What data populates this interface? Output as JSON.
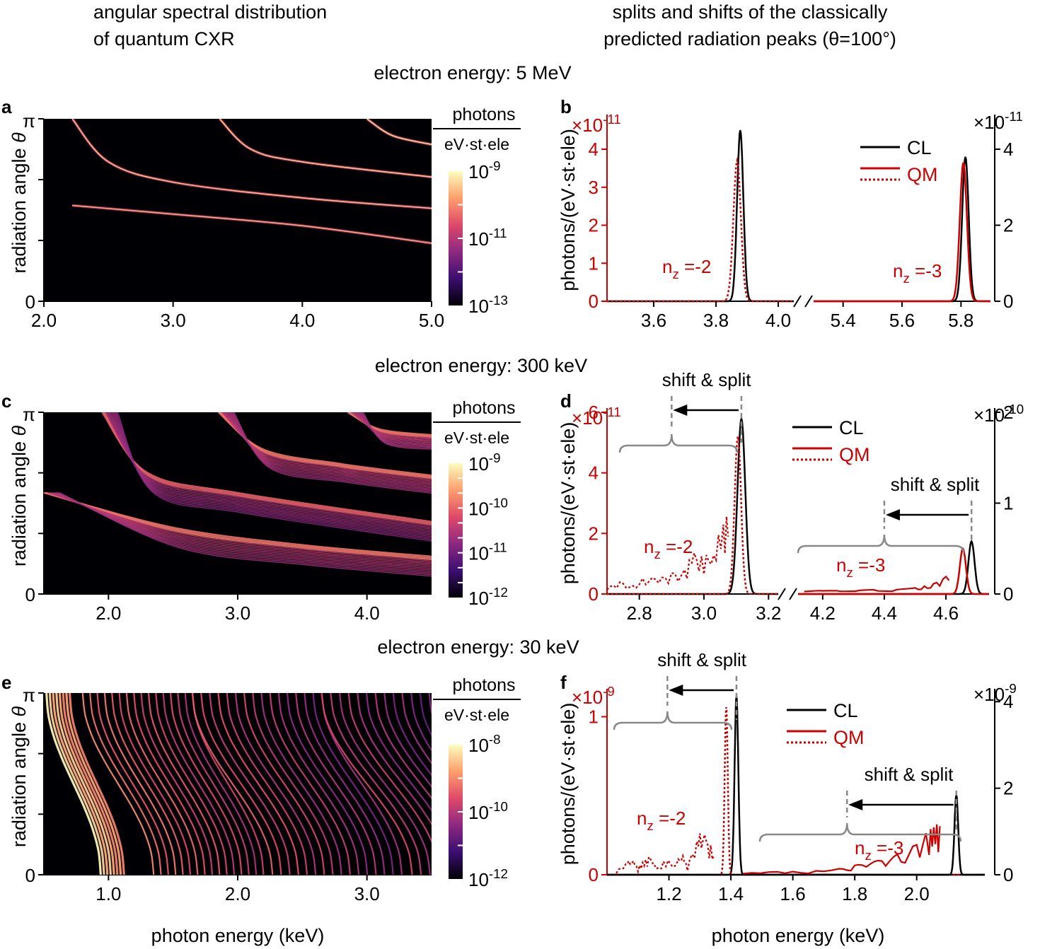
{
  "headers": {
    "left": [
      "angular spectral distribution",
      "of quantum CXR"
    ],
    "right": [
      "splits and shifts of the classically",
      "predicted radiation peaks (θ=100°)"
    ]
  },
  "section_titles": {
    "row1": "electron energy: 5 MeV",
    "row2": "electron energy: 300 keV",
    "row3": "electron energy: 30 keV"
  },
  "panel_letters": {
    "a": "a",
    "b": "b",
    "c": "c",
    "d": "d",
    "e": "e",
    "f": "f"
  },
  "bottom_xlabels": {
    "left": "photon energy (keV)",
    "right": "photon energy (keV)"
  },
  "colors": {
    "classical": "#000000",
    "quantum": "#cc0000",
    "annotation": "#888888",
    "heatmap_background": "#000004",
    "colormap": [
      "#000004",
      "#3b0f70",
      "#8c2981",
      "#de4968",
      "#fe9f6d",
      "#fcfdbf"
    ]
  },
  "chart_data": [
    {
      "panel": "a",
      "type": "heatmap",
      "ylabel": "radiation angle θ",
      "xticks": [
        "2.0",
        "3.0",
        "4.0",
        "5.0"
      ],
      "xlim": [
        2.0,
        5.0
      ],
      "yticks": [
        "0",
        "π"
      ],
      "ylim": [
        0,
        3.1416
      ],
      "colorbar": {
        "title": "photons",
        "unit": "eV·st·ele",
        "ticks": [
          "10-9",
          "10-11",
          "10-13"
        ],
        "scale": "log",
        "range": [
          1e-13,
          1e-09
        ]
      },
      "curves": [
        {
          "x": [
            2.22,
            3.0,
            4.0,
            5.0
          ],
          "y": [
            1.65,
            1.5,
            1.3,
            1.0
          ],
          "intensity": 0.62
        },
        {
          "x": [
            2.22,
            2.5,
            3.0,
            4.0,
            5.0
          ],
          "y": [
            3.14,
            2.4,
            2.05,
            1.78,
            1.6
          ],
          "intensity": 0.66
        },
        {
          "x": [
            3.36,
            3.6,
            4.0,
            5.0
          ],
          "y": [
            3.14,
            2.62,
            2.4,
            2.14
          ],
          "intensity": 0.68
        },
        {
          "x": [
            4.5,
            4.7,
            5.0
          ],
          "y": [
            3.14,
            2.85,
            2.7
          ],
          "intensity": 0.72
        }
      ]
    },
    {
      "panel": "b",
      "type": "line",
      "ylabel": "photons/(eV·st·ele)",
      "left_axis": {
        "multiplier": "×10-11",
        "ticks": [
          0,
          1,
          2,
          3,
          4
        ],
        "ylim": [
          0,
          4.8
        ]
      },
      "right_axis": {
        "multiplier": "×10-11",
        "ticks": [
          0,
          2,
          4
        ],
        "ylim": [
          0,
          4.8
        ]
      },
      "segments": [
        {
          "xlim": [
            3.45,
            4.05
          ],
          "xticks": [
            "3.6",
            "3.8",
            "4.0"
          ]
        },
        {
          "xlim": [
            5.3,
            5.9
          ],
          "xticks": [
            "5.4",
            "5.6",
            "5.8"
          ]
        }
      ],
      "legend": [
        "CL",
        "QM"
      ],
      "annotations": [
        {
          "text": "nz =-2"
        },
        {
          "text": "nz =-3"
        }
      ],
      "peaks": [
        {
          "series": "CL",
          "segment": 0,
          "center": 3.878,
          "width": 0.01,
          "height": 4.5
        },
        {
          "series": "QM-dotted",
          "segment": 0,
          "center": 3.868,
          "width": 0.012,
          "height": 3.7
        },
        {
          "series": "CL",
          "segment": 1,
          "center": 5.815,
          "width": 0.011,
          "height": 3.8
        },
        {
          "series": "QM-solid",
          "segment": 1,
          "center": 5.808,
          "width": 0.012,
          "height": 3.65
        }
      ]
    },
    {
      "panel": "c",
      "type": "heatmap",
      "ylabel": "radiation angle θ",
      "xticks": [
        "2.0",
        "3.0",
        "4.0"
      ],
      "xlim": [
        1.5,
        4.5
      ],
      "yticks": [
        "0",
        "π"
      ],
      "ylim": [
        0,
        3.1416
      ],
      "colorbar": {
        "title": "photons",
        "unit": "eV·st·ele",
        "ticks": [
          "10-9",
          "10-10",
          "10-11",
          "10-12"
        ],
        "scale": "log",
        "range": [
          1e-12,
          1e-09
        ]
      },
      "bands": [
        {
          "x": [
            1.5,
            2.5,
            3.5,
            4.5
          ],
          "y": [
            1.75,
            1.15,
            0.85,
            0.65
          ],
          "spread": 0.35,
          "intensity": 0.55
        },
        {
          "x": [
            1.95,
            2.3,
            3.0,
            4.5
          ],
          "y": [
            3.14,
            2.1,
            1.75,
            1.25
          ],
          "spread": 0.35,
          "intensity": 0.5
        },
        {
          "x": [
            2.85,
            3.2,
            3.8,
            4.5
          ],
          "y": [
            3.14,
            2.5,
            2.25,
            2.05
          ],
          "spread": 0.32,
          "intensity": 0.55
        },
        {
          "x": [
            3.85,
            4.1,
            4.5
          ],
          "y": [
            3.14,
            2.85,
            2.75
          ],
          "spread": 0.25,
          "intensity": 0.55
        }
      ]
    },
    {
      "panel": "d",
      "type": "line",
      "ylabel": "photons/(eV·st·ele)",
      "left_axis": {
        "multiplier": "×10-11",
        "ticks": [
          0,
          2,
          4,
          6
        ],
        "ylim": [
          0,
          6.0
        ]
      },
      "right_axis": {
        "multiplier": "×10-10",
        "ticks": [
          0,
          1,
          2
        ],
        "ylim": [
          0,
          2.0
        ]
      },
      "segments": [
        {
          "xlim": [
            2.7,
            3.23
          ],
          "xticks": [
            "2.8",
            "3.0",
            "3.2"
          ]
        },
        {
          "xlim": [
            4.12,
            4.74
          ],
          "xticks": [
            "4.2",
            "4.4",
            "4.6"
          ]
        }
      ],
      "legend": [
        "CL",
        "QM"
      ],
      "annotations": [
        {
          "text": "shift & split"
        },
        {
          "text": "shift & split"
        },
        {
          "text": "nz =-2"
        },
        {
          "text": "nz =-3"
        }
      ],
      "peaks": [
        {
          "series": "CL",
          "segment": 0,
          "center": 3.116,
          "width": 0.012,
          "height": 5.8
        },
        {
          "series": "QM-dotted",
          "segment": 0,
          "center": 3.105,
          "width": 0.01,
          "height": 5.2
        },
        {
          "series": "CL",
          "segment": 1,
          "center": 4.683,
          "width": 0.01,
          "height": 0.58
        },
        {
          "series": "QM-solid",
          "segment": 1,
          "center": 4.655,
          "width": 0.01,
          "height": 0.5
        }
      ],
      "qm_noise": [
        {
          "segment": 0,
          "x": [
            2.7,
            2.74,
            2.78,
            2.82,
            2.86,
            2.9,
            2.94,
            2.97,
            3.0,
            3.03,
            3.06,
            3.08
          ],
          "y": [
            0.2,
            0.4,
            0.3,
            0.6,
            0.5,
            0.7,
            0.9,
            1.4,
            1.2,
            1.6,
            2.3,
            3.0
          ]
        },
        {
          "segment": 1,
          "x": [
            4.14,
            4.2,
            4.26,
            4.32,
            4.38,
            4.44,
            4.5,
            4.54,
            4.58,
            4.62
          ],
          "y": [
            0.03,
            0.04,
            0.05,
            0.04,
            0.05,
            0.06,
            0.07,
            0.1,
            0.14,
            0.26
          ]
        }
      ],
      "shift_arrows": [
        {
          "segment": 0,
          "from": 3.116,
          "to": 2.9
        },
        {
          "segment": 1,
          "from": 4.683,
          "to": 4.4
        }
      ]
    },
    {
      "panel": "e",
      "type": "heatmap",
      "ylabel": "radiation angle θ",
      "xticks": [
        "1.0",
        "2.0",
        "3.0"
      ],
      "xlim": [
        0.5,
        3.5
      ],
      "yticks": [
        "0",
        "π"
      ],
      "ylim": [
        0,
        3.1416
      ],
      "colorbar": {
        "title": "photons",
        "unit": "eV·st·ele",
        "ticks": [
          "10-8",
          "10-10",
          "10-12"
        ],
        "scale": "log",
        "range": [
          1e-12,
          1e-08
        ]
      },
      "families": [
        {
          "x_top_start": 0.52,
          "x_top_end": 0.7,
          "count": 8,
          "drift": 0.42,
          "intensity": 0.78
        },
        {
          "x_top_start": 0.8,
          "x_top_end": 1.65,
          "count": 16,
          "drift": 0.55,
          "intensity": 0.55
        },
        {
          "x_top_start": 1.65,
          "x_top_end": 2.65,
          "count": 16,
          "drift": 0.62,
          "intensity": 0.45
        },
        {
          "x_top_start": 2.65,
          "x_top_end": 3.55,
          "count": 14,
          "drift": 0.7,
          "intensity": 0.38
        }
      ]
    },
    {
      "panel": "f",
      "type": "line",
      "ylabel": "photons/(eV·st·ele)",
      "xlim": [
        1.0,
        2.22
      ],
      "xticks": [
        "1.2",
        "1.4",
        "1.6",
        "1.8",
        "2.0"
      ],
      "left_axis": {
        "multiplier": "×10-9",
        "ticks": [
          0,
          1
        ],
        "ylim": [
          0,
          1.15
        ]
      },
      "right_axis": {
        "multiplier": "×10-9",
        "ticks": [
          0,
          2,
          4
        ],
        "ylim": [
          0,
          4.2
        ]
      },
      "legend": [
        "CL",
        "QM"
      ],
      "annotations": [
        {
          "text": "shift & split"
        },
        {
          "text": "shift & split"
        },
        {
          "text": "nz =-2"
        },
        {
          "text": "nz =-3"
        }
      ],
      "peaks": [
        {
          "series": "CL",
          "center": 1.418,
          "width": 0.006,
          "height": 1.13
        },
        {
          "series": "QM-dotted",
          "center": 1.385,
          "width": 0.005,
          "height": 1.06
        },
        {
          "series": "CL-right",
          "center": 2.128,
          "width": 0.006,
          "height": 1.2
        }
      ],
      "qm_noise": [
        {
          "style": "dotted",
          "x": [
            1.03,
            1.06,
            1.08,
            1.1,
            1.12,
            1.14,
            1.16,
            1.19,
            1.22,
            1.24,
            1.26,
            1.29,
            1.31,
            1.33,
            1.35
          ],
          "y": [
            0.02,
            0.08,
            0.11,
            0.05,
            0.09,
            0.12,
            0.04,
            0.1,
            0.07,
            0.15,
            0.06,
            0.24,
            0.31,
            0.22,
            0.1
          ]
        },
        {
          "style": "solid",
          "x": [
            1.44,
            1.55,
            1.65,
            1.75,
            1.8,
            1.85,
            1.9,
            1.95,
            2.0,
            2.04,
            2.06,
            2.08
          ],
          "y": [
            0.01,
            0.02,
            0.02,
            0.04,
            0.06,
            0.08,
            0.1,
            0.14,
            0.22,
            0.28,
            0.33,
            0.3
          ]
        }
      ],
      "shift_arrows": [
        {
          "from": 1.418,
          "to": 1.195
        },
        {
          "from": 2.128,
          "to": 1.775
        }
      ]
    }
  ]
}
